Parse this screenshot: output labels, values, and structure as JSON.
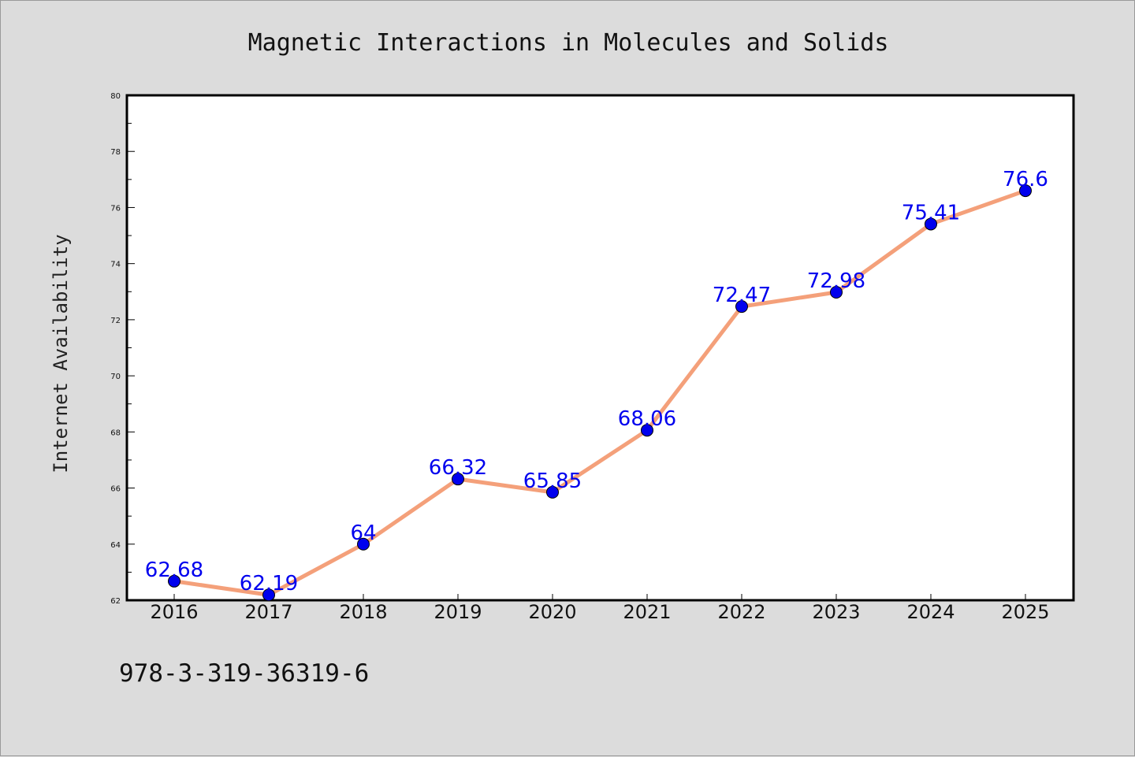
{
  "chart_data": {
    "type": "line",
    "title": "Magnetic Interactions in Molecules and Solids",
    "ylabel": "Internet Availability",
    "xlabel": "",
    "categories": [
      "2016",
      "2017",
      "2018",
      "2019",
      "2020",
      "2021",
      "2022",
      "2023",
      "2024",
      "2025"
    ],
    "series": [
      {
        "values": [
          62.68,
          62.19,
          64,
          66.32,
          65.85,
          68.06,
          72.47,
          72.98,
          75.41,
          76.6
        ],
        "labels": [
          "62.68",
          "62.19",
          "64",
          "66.32",
          "65.85",
          "68.06",
          "72.47",
          "72.98",
          "75.41",
          "76.6"
        ],
        "line_color": "#f4a07a",
        "marker_color": "#0000ee"
      }
    ],
    "ylim": [
      62,
      80
    ],
    "yticks": [
      "62",
      "64",
      "66",
      "68",
      "70",
      "72",
      "74",
      "76",
      "78",
      "80"
    ],
    "grid": false,
    "legend": "none"
  },
  "footer": {
    "isbn": "978-3-319-36319-6"
  }
}
